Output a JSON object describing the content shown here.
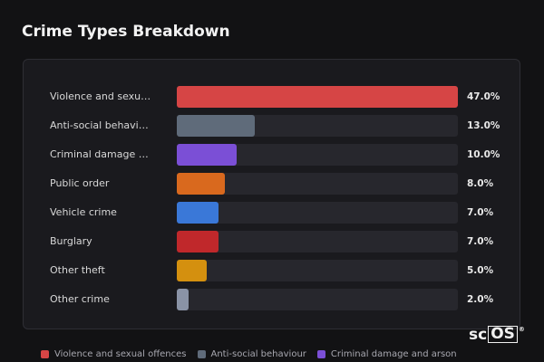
{
  "chart_data": {
    "type": "bar",
    "orientation": "horizontal",
    "title": "Crime Types Breakdown",
    "categories": [
      "Violence and sexual offences",
      "Anti-social behaviour",
      "Criminal damage and arson",
      "Public order",
      "Vehicle crime",
      "Burglary",
      "Other theft",
      "Other crime"
    ],
    "values": [
      47.0,
      13.0,
      10.0,
      8.0,
      7.0,
      7.0,
      5.0,
      2.0
    ],
    "value_labels": [
      "47.0%",
      "13.0%",
      "10.0%",
      "8.0%",
      "7.0%",
      "7.0%",
      "5.0%",
      "2.0%"
    ],
    "colors": [
      "#d64545",
      "#5f6b7a",
      "#7b4fd6",
      "#d9691e",
      "#3a78d8",
      "#c0282b",
      "#d4900f",
      "#8a93a6"
    ],
    "xlim": [
      0,
      47
    ],
    "legend": "bottom"
  },
  "watermark": {
    "prefix": "sc",
    "boxed": "OS",
    "mark": "®"
  }
}
